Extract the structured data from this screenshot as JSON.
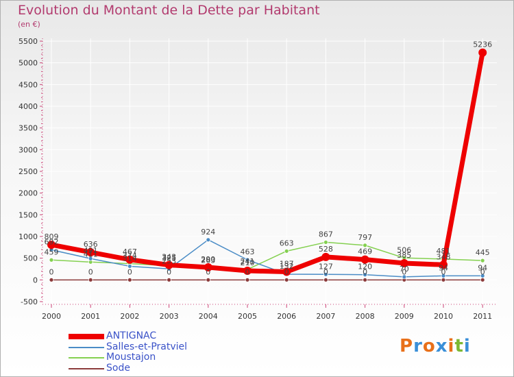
{
  "title": "Evolution du Montant de la Dette par Habitant",
  "subtitle": "(en €)",
  "logo": {
    "text": "Proxiti",
    "colors": [
      "#e8701a",
      "#3a8fd8",
      "#e8701a",
      "#3a8fd8",
      "#e8701a",
      "#7cb832",
      "#3a8fd8"
    ]
  },
  "chart_data": {
    "type": "line",
    "x": [
      "2000",
      "2001",
      "2002",
      "2003",
      "2004",
      "2005",
      "2006",
      "2007",
      "2008",
      "2009",
      "2010",
      "2011"
    ],
    "ylim": [
      -500,
      5500
    ],
    "yticks": [
      -500,
      0,
      500,
      1000,
      1500,
      2000,
      2500,
      3000,
      3500,
      4000,
      4500,
      5000,
      5500
    ],
    "series": [
      {
        "name": "ANTIGNAC",
        "color": "#ee0000",
        "values": [
          809,
          636,
          467,
          343,
          290,
          210,
          187,
          528,
          469,
          385,
          348,
          5236
        ]
      },
      {
        "name": "Salles-et-Pratviel",
        "color": "#4a8cc6",
        "values": [
          692,
          491,
          314,
          253,
          924,
          463,
          132,
          127,
          120,
          70,
          94,
          94
        ]
      },
      {
        "name": "Moustajon",
        "color": "#84d050",
        "values": [
          459,
          411,
          374,
          325,
          263,
          241,
          663,
          867,
          797,
          506,
          481,
          445
        ]
      },
      {
        "name": "Sode",
        "color": "#8b3a3a",
        "values": [
          0,
          0,
          0,
          0,
          0,
          0,
          0,
          0,
          0,
          0,
          0,
          0
        ]
      }
    ]
  }
}
